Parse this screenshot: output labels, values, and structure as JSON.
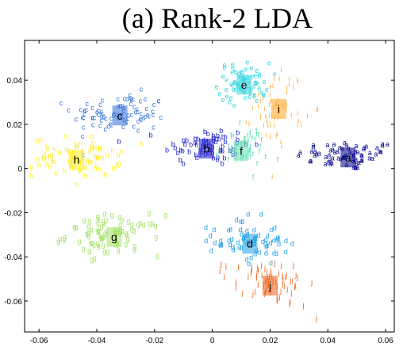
{
  "chart_data": {
    "type": "scatter",
    "title": "(a) Rank-2 LDA",
    "xlabel": "",
    "ylabel": "",
    "xlim": [
      -0.065,
      0.063
    ],
    "ylim": [
      -0.074,
      0.058
    ],
    "xticks": [
      -0.06,
      -0.04,
      -0.02,
      0,
      0.02,
      0.04,
      0.06
    ],
    "xtick_labels": [
      "-0.06",
      "-0.04",
      "-0.02",
      "0",
      "0.02",
      "0.04",
      "0.06"
    ],
    "yticks": [
      0.04,
      0.02,
      0,
      -0.02,
      -0.04,
      -0.06
    ],
    "ytick_labels": [
      "0.04",
      "0.02",
      "0",
      "-0.02",
      "-0.04",
      "-0.06"
    ],
    "grid": false,
    "series": [
      {
        "label": "a",
        "color": "#00008b",
        "center": [
          0.047,
          0.005
        ],
        "spread": [
          0.012,
          0.0045
        ],
        "count": 70
      },
      {
        "label": "b",
        "color": "#1a1acd",
        "center": [
          -0.002,
          0.009
        ],
        "spread": [
          0.01,
          0.006
        ],
        "count": 70
      },
      {
        "label": "c",
        "color": "#2f6fd8",
        "center": [
          -0.032,
          0.024
        ],
        "spread": [
          0.011,
          0.006
        ],
        "count": 90
      },
      {
        "label": "d",
        "color": "#1ea0e6",
        "center": [
          0.013,
          -0.034
        ],
        "spread": [
          0.008,
          0.007
        ],
        "count": 70
      },
      {
        "label": "e",
        "color": "#35d6e0",
        "center": [
          0.011,
          0.038
        ],
        "spread": [
          0.006,
          0.006
        ],
        "count": 70
      },
      {
        "label": "f",
        "color": "#5ee0b0",
        "center": [
          0.01,
          0.008
        ],
        "spread": [
          0.006,
          0.006
        ],
        "count": 50
      },
      {
        "label": "g",
        "color": "#a6e36a",
        "center": [
          -0.034,
          -0.031
        ],
        "spread": [
          0.011,
          0.006
        ],
        "count": 80
      },
      {
        "label": "h",
        "color": "#ffee22",
        "center": [
          -0.047,
          0.004
        ],
        "spread": [
          0.01,
          0.006
        ],
        "count": 80
      },
      {
        "label": "i",
        "color": "#ffa51f",
        "center": [
          0.023,
          0.027
        ],
        "spread": [
          0.006,
          0.011
        ],
        "count": 60
      },
      {
        "label": "j",
        "color": "#f06014",
        "center": [
          0.02,
          -0.053
        ],
        "spread": [
          0.008,
          0.007
        ],
        "count": 70
      }
    ]
  }
}
